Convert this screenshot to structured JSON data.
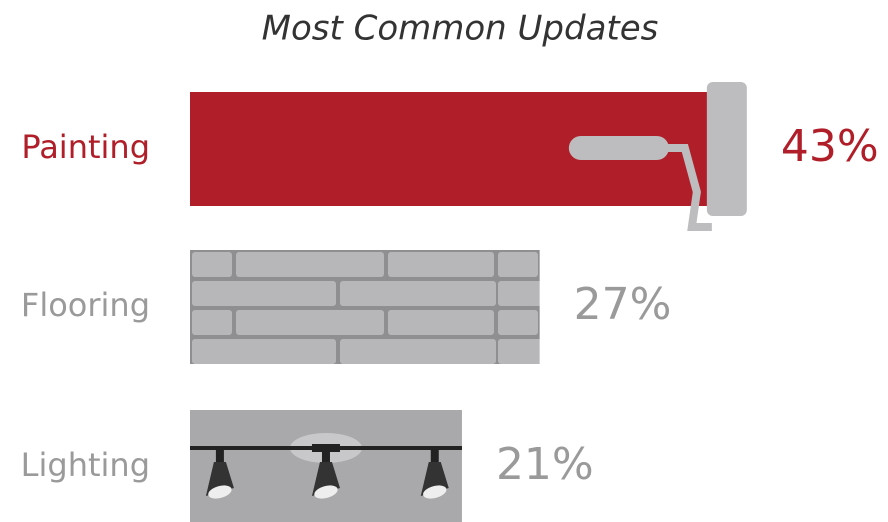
{
  "chart_data": {
    "type": "bar",
    "orientation": "horizontal",
    "title": "Most Common Updates",
    "categories": [
      "Painting",
      "Flooring",
      "Lighting"
    ],
    "values": [
      43,
      27,
      21
    ],
    "value_labels": [
      "43%",
      "27%",
      "21%"
    ],
    "colors": [
      "#b01f29",
      "#a9a9ab",
      "#a9a9ab"
    ],
    "label_colors": [
      "#b01f29",
      "#9a9a9a",
      "#9a9a9a"
    ]
  }
}
